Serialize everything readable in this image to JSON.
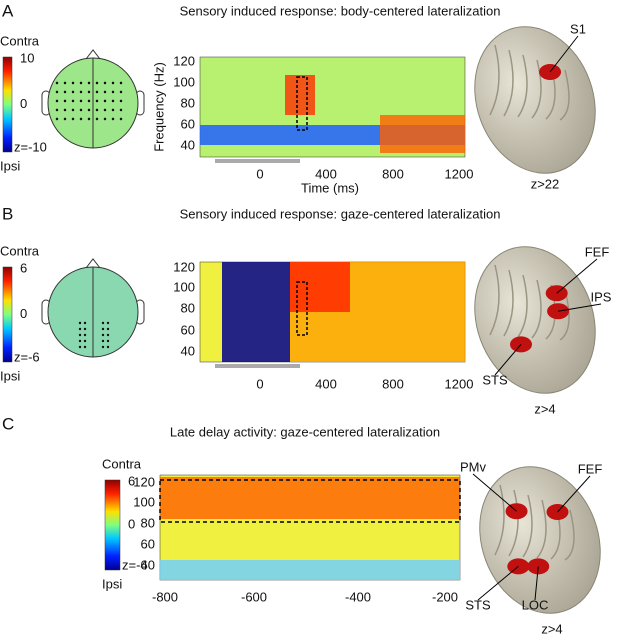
{
  "panels": [
    {
      "letter": "A",
      "title": "Sensory induced response: body-centered lateralization",
      "colorbar": {
        "top": "Contra",
        "max": "10",
        "mid": "0",
        "min": "z=-10",
        "bottom": "Ipsi"
      },
      "y_label": "Frequency (Hz)",
      "y_ticks": [
        "120",
        "100",
        "80",
        "60",
        "40"
      ],
      "x_label": "Time (ms)",
      "x_ticks": [
        "0",
        "400",
        "800",
        "1200"
      ],
      "brain_labels": [
        "S1"
      ],
      "threshold": "z>22"
    },
    {
      "letter": "B",
      "title": "Sensory induced response: gaze-centered lateralization",
      "colorbar": {
        "top": "Contra",
        "max": "6",
        "mid": "0",
        "min": "z=-6",
        "bottom": "Ipsi"
      },
      "y_ticks": [
        "120",
        "100",
        "80",
        "60",
        "40"
      ],
      "x_ticks": [
        "0",
        "400",
        "800",
        "1200"
      ],
      "brain_labels": [
        "FEF",
        "IPS",
        "STS"
      ],
      "threshold": "z>4"
    },
    {
      "letter": "C",
      "title": "Late delay activity: gaze-centered lateralization",
      "colorbar": {
        "top": "Contra",
        "max": "6",
        "mid": "0",
        "min": "z=-6",
        "bottom": "Ipsi"
      },
      "y_ticks": [
        "120",
        "100",
        "80",
        "60",
        "40"
      ],
      "x_ticks": [
        "-800",
        "-600",
        "-400",
        "-200"
      ],
      "brain_labels": [
        "PMv",
        "FEF",
        "STS",
        "LOC"
      ],
      "threshold": "z>4"
    }
  ]
}
